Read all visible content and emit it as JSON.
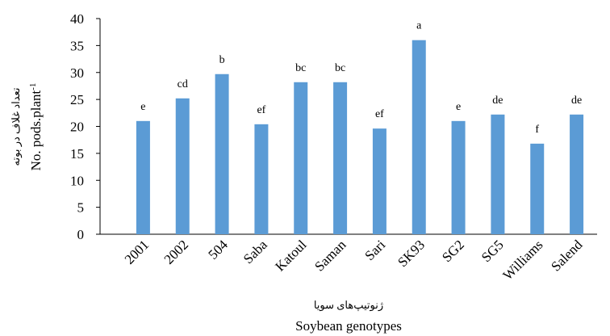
{
  "chart_data": {
    "type": "bar",
    "categories": [
      "2001",
      "2002",
      "504",
      "Saba",
      "Katoul",
      "Saman",
      "Sari",
      "SK93",
      "SG2",
      "SG5",
      "Williams",
      "Salend"
    ],
    "values": [
      21.0,
      25.2,
      29.7,
      20.4,
      28.2,
      28.2,
      19.6,
      36.0,
      21.0,
      22.2,
      16.8,
      22.2
    ],
    "annotations": [
      "e",
      "cd",
      "b",
      "ef",
      "bc",
      "bc",
      "ef",
      "a",
      "e",
      "de",
      "f",
      "de"
    ],
    "color": "#5b9bd5",
    "ylim": [
      0,
      40
    ],
    "yticks": [
      0,
      5,
      10,
      15,
      20,
      25,
      30,
      35,
      40
    ],
    "y_label_fa": "تعداد غلاف در بوته",
    "y_label": "No. pods.plant",
    "y_label_superscript": "-1",
    "x_label_fa": "ژنوتیپ‌های سویا",
    "x_label": "Soybean genotypes"
  }
}
